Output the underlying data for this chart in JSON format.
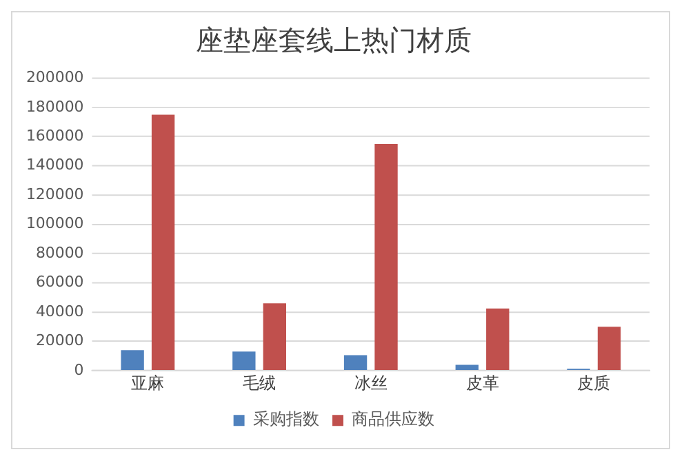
{
  "chart_data": {
    "type": "bar",
    "title": "座垫座套线上热门材质",
    "categories": [
      "亚麻",
      "毛绒",
      "冰丝",
      "皮革",
      "皮质"
    ],
    "series": [
      {
        "name": "采购指数",
        "color": "#4f81bd",
        "values": [
          14000,
          13000,
          10500,
          4000,
          1200
        ]
      },
      {
        "name": "商品供应数",
        "color": "#c0504d",
        "values": [
          175000,
          46000,
          155000,
          42500,
          30000
        ]
      }
    ],
    "ylim": [
      0,
      200000
    ],
    "yticks": [
      0,
      20000,
      40000,
      60000,
      80000,
      100000,
      120000,
      140000,
      160000,
      180000,
      200000
    ],
    "grid": "y",
    "legend": "bottom"
  }
}
